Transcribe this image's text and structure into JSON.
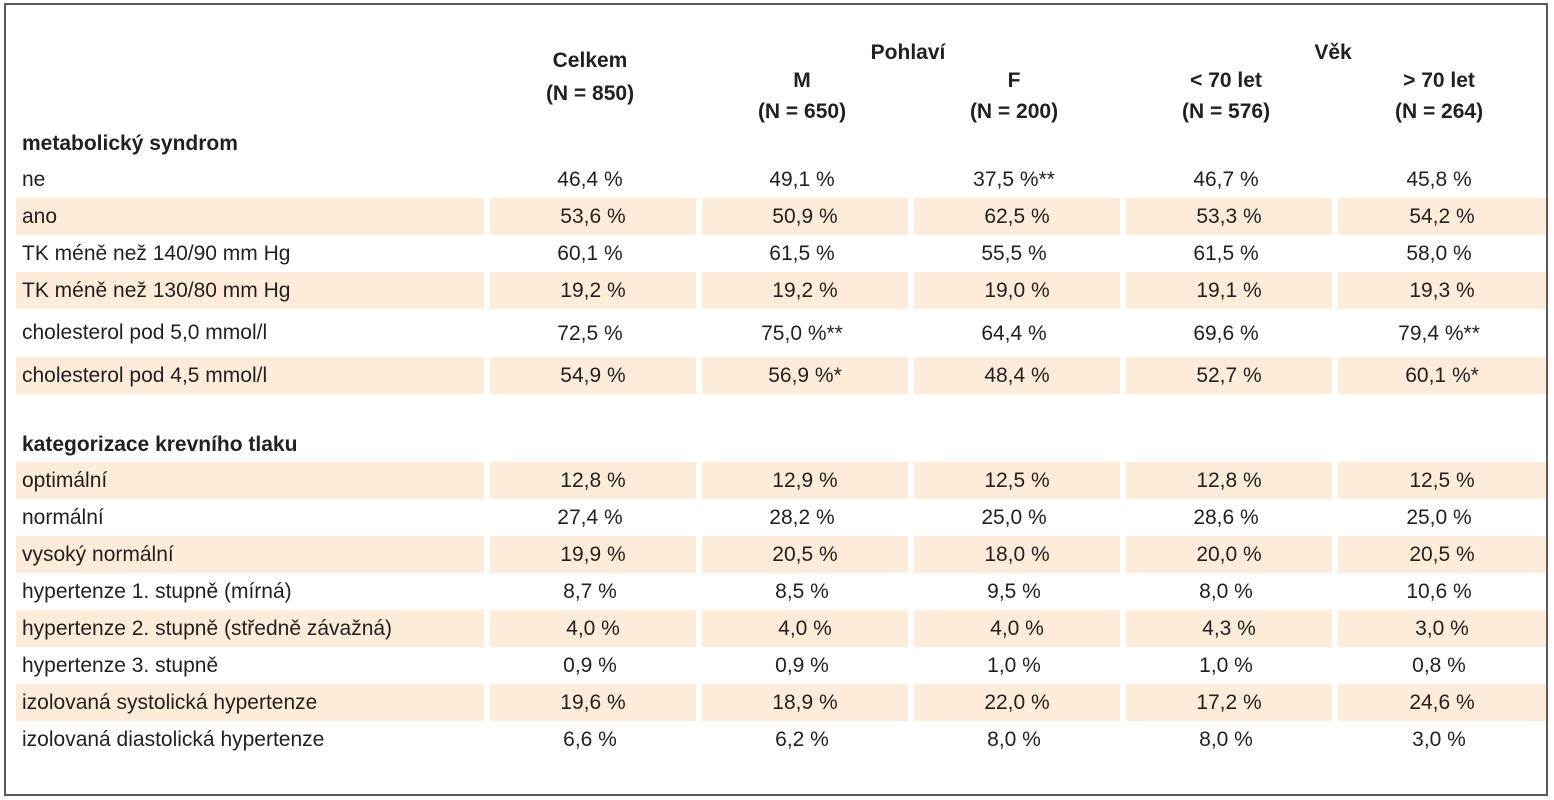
{
  "header": {
    "total_label": "Celkem",
    "total_n": "(N = 850)",
    "sex_group": "Pohlaví",
    "age_group": "Věk",
    "male_label": "M",
    "male_n": "(N = 650)",
    "female_label": "F",
    "female_n": "(N = 200)",
    "under70_label": "< 70 let",
    "under70_n": "(N = 576)",
    "over70_label": "> 70 let",
    "over70_n": "(N = 264)"
  },
  "section1": {
    "title": "metabolický syndrom",
    "rows": [
      {
        "label": "ne",
        "total": "46,4 %",
        "m": "49,1 %",
        "f": "37,5 %**",
        "lt70": "46,7 %",
        "gt70": "45,8 %"
      },
      {
        "label": "ano",
        "total": "53,6 %",
        "m": "50,9 %",
        "f": "62,5 %",
        "lt70": "53,3 %",
        "gt70": "54,2 %"
      },
      {
        "label": "TK méně než 140/90 mm Hg",
        "total": "60,1 %",
        "m": "61,5 %",
        "f": "55,5 %",
        "lt70": "61,5 %",
        "gt70": "58,0 %"
      },
      {
        "label": "TK méně než 130/80 mm Hg",
        "total": "19,2 %",
        "m": "19,2 %",
        "f": "19,0 %",
        "lt70": "19,1 %",
        "gt70": "19,3 %"
      },
      {
        "label": "cholesterol pod 5,0 mmol/l",
        "total": "72,5 %",
        "m": "75,0 %**",
        "f": "64,4 %",
        "lt70": "69,6 %",
        "gt70": "79,4 %**"
      },
      {
        "label": "cholesterol pod 4,5 mmol/l",
        "total": "54,9 %",
        "m": "56,9 %*",
        "f": "48,4 %",
        "lt70": "52,7 %",
        "gt70": "60,1 %*"
      }
    ]
  },
  "section2": {
    "title": "kategorizace krevního tlaku",
    "rows": [
      {
        "label": "optimální",
        "total": "12,8 %",
        "m": "12,9 %",
        "f": "12,5 %",
        "lt70": "12,8 %",
        "gt70": "12,5 %"
      },
      {
        "label": "normální",
        "total": "27,4 %",
        "m": "28,2 %",
        "f": "25,0 %",
        "lt70": "28,6 %",
        "gt70": "25,0 %"
      },
      {
        "label": "vysoký normální",
        "total": "19,9 %",
        "m": "20,5 %",
        "f": "18,0 %",
        "lt70": "20,0 %",
        "gt70": "20,5 %"
      },
      {
        "label": "hypertenze 1. stupně (mírná)",
        "total": "8,7 %",
        "m": "8,5 %",
        "f": "9,5 %",
        "lt70": "8,0 %",
        "gt70": "10,6 %"
      },
      {
        "label": "hypertenze 2. stupně (středně závažná)",
        "total": "4,0 %",
        "m": "4,0 %",
        "f": "4,0 %",
        "lt70": "4,3 %",
        "gt70": "3,0 %"
      },
      {
        "label": "hypertenze 3. stupně",
        "total": "0,9 %",
        "m": "0,9 %",
        "f": "1,0 %",
        "lt70": "1,0 %",
        "gt70": "0,8 %"
      },
      {
        "label": "izolovaná systolická hypertenze",
        "total": "19,6 %",
        "m": "18,9 %",
        "f": "22,0 %",
        "lt70": "17,2 %",
        "gt70": "24,6 %"
      },
      {
        "label": "izolovaná diastolická hypertenze",
        "total": "6,6 %",
        "m": "6,2 %",
        "f": "8,0 %",
        "lt70": "8,0 %",
        "gt70": "3,0 %"
      }
    ]
  },
  "colors": {
    "shading": "#fdecd9",
    "border": "#5a5a5a",
    "text": "#231f20"
  }
}
